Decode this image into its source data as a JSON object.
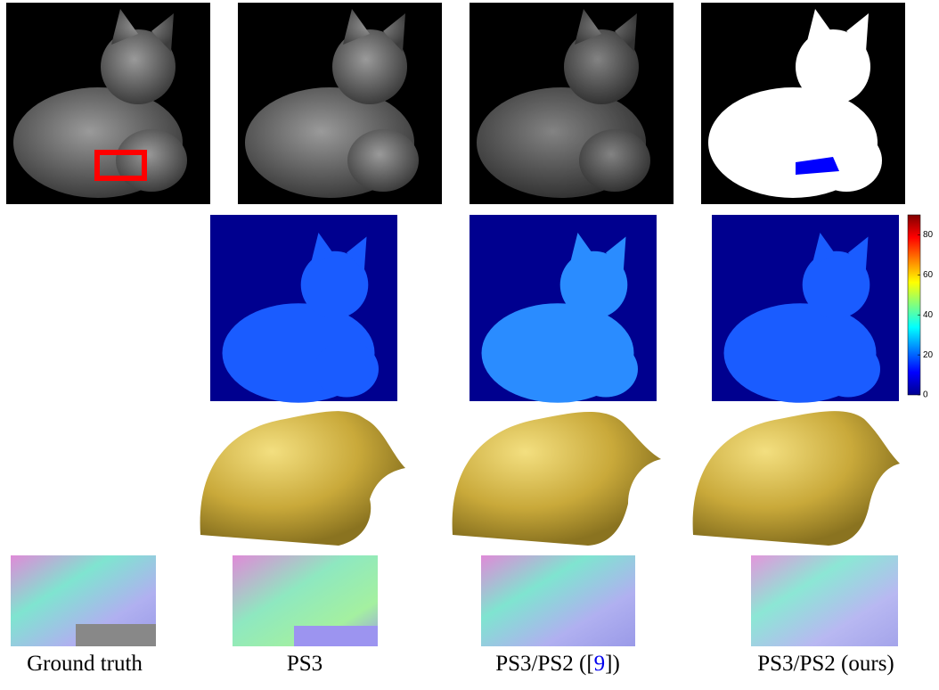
{
  "captions": [
    {
      "text": "Ground truth"
    },
    {
      "text": "PS3"
    },
    {
      "before": "PS3/PS2 ([",
      "ref": "9",
      "after": "])"
    },
    {
      "text": "PS3/PS2 (ours)"
    }
  ],
  "colorbar": {
    "range": [
      0,
      90
    ],
    "ticks": [
      0,
      20,
      40,
      60,
      80
    ]
  }
}
